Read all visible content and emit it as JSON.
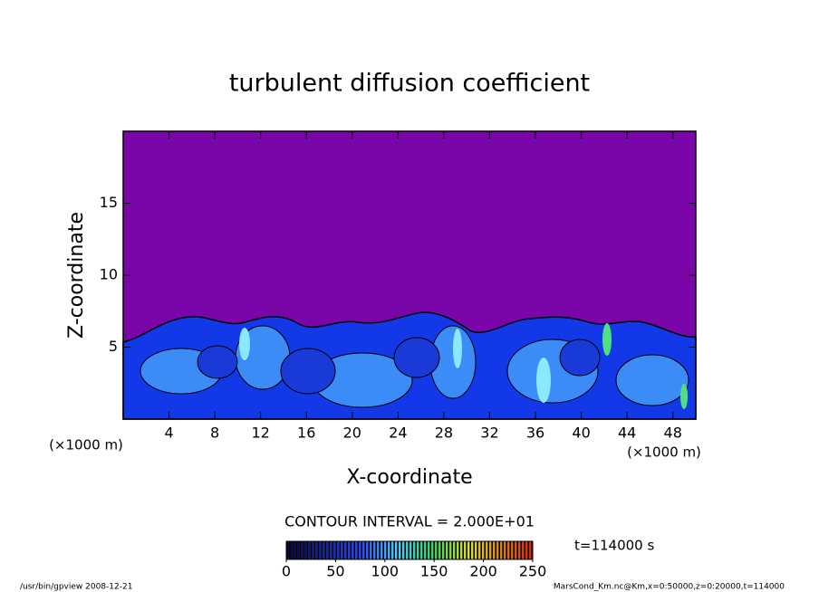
{
  "chart_data": {
    "type": "contour",
    "title": "turbulent diffusion coefficient",
    "x_label": "X-coordinate",
    "y_label": "Z-coordinate",
    "x_unit": "(×1000 m)",
    "y_unit": "(×1000 m)",
    "xlim": [
      0,
      50
    ],
    "ylim": [
      0,
      20
    ],
    "xticks": [
      4,
      8,
      12,
      16,
      20,
      24,
      28,
      32,
      36,
      40,
      44,
      48
    ],
    "yticks": [
      5,
      10,
      15
    ],
    "contour_interval_label": "CONTOUR INTERVAL = 2.000E+01",
    "time_label": "t=114000 s",
    "colorbar": {
      "lim": [
        0,
        250
      ],
      "ticks": [
        0,
        50,
        100,
        150,
        200,
        250
      ]
    },
    "footer_left": "/usr/bin/gpview  2008-12-21",
    "footer_right": "MarsCond_Km.nc@Km,x=0:50000,z=0:20000,t=114000"
  }
}
